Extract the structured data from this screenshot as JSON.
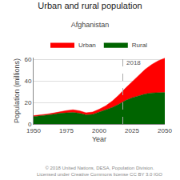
{
  "chart_data": {
    "type": "area",
    "stacked": true,
    "title": "Urban and rural population",
    "subtitle": "Afghanistan",
    "x_label": "Year",
    "y_label": "Population (millions)",
    "x": [
      1950,
      1955,
      1960,
      1965,
      1970,
      1975,
      1980,
      1985,
      1990,
      1995,
      2000,
      2005,
      2010,
      2015,
      2020,
      2025,
      2030,
      2035,
      2040,
      2045,
      2050
    ],
    "series": [
      {
        "name": "Rural",
        "color": "#006400",
        "values": [
          7.0,
          7.5,
          8.2,
          9.0,
          10.0,
          10.5,
          10.8,
          10.0,
          8.5,
          9.0,
          11.0,
          13.0,
          15.5,
          18.5,
          22.0,
          24.5,
          26.5,
          28.0,
          29.0,
          29.5,
          29.5
        ]
      },
      {
        "name": "Urban",
        "color": "#ff0000",
        "values": [
          0.8,
          0.9,
          1.0,
          1.2,
          1.5,
          2.0,
          2.5,
          2.3,
          2.0,
          2.2,
          2.8,
          4.0,
          6.0,
          8.5,
          11.5,
          15.0,
          19.0,
          23.0,
          26.5,
          29.5,
          32.0
        ]
      }
    ],
    "xlim": [
      1950,
      2050
    ],
    "ylim": [
      0,
      62
    ],
    "xticks": [
      1950,
      1975,
      2000,
      2025,
      2050
    ],
    "yticks": [
      0,
      20,
      40,
      60
    ],
    "grid": true,
    "legend": "top",
    "annotations": [
      {
        "text": "2018",
        "x": 2018
      }
    ],
    "footnote": "© 2018 United Nations, DESA, Population Division. Licensed under Creative Commons license CC BY 3.0 IGO"
  }
}
